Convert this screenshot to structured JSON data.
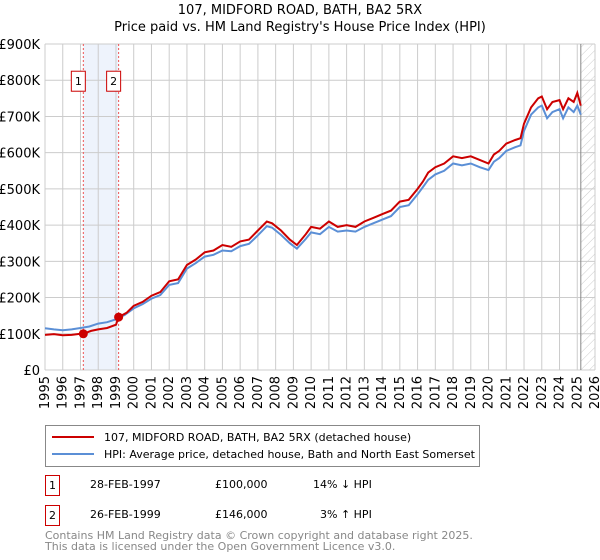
{
  "header": {
    "line1": "107, MIDFORD ROAD, BATH, BA2 5RX",
    "line2": "Price paid vs. HM Land Registry's House Price Index (HPI)"
  },
  "chart_data": {
    "type": "line",
    "title": "107, MIDFORD ROAD, BATH, BA2 5RX — Price paid vs. HM Land Registry's House Price Index (HPI)",
    "xlim": [
      1995,
      2026
    ],
    "ylim": [
      0,
      900000
    ],
    "x_ticks": [
      "1995",
      "1996",
      "1997",
      "1998",
      "1999",
      "2000",
      "2001",
      "2002",
      "2003",
      "2004",
      "2005",
      "2006",
      "2007",
      "2008",
      "2009",
      "2010",
      "2011",
      "2012",
      "2013",
      "2014",
      "2015",
      "2016",
      "2017",
      "2018",
      "2019",
      "2020",
      "2021",
      "2022",
      "2023",
      "2024",
      "2025",
      "2026"
    ],
    "y_ticks": [
      {
        "v": 0,
        "label": "£0"
      },
      {
        "v": 100000,
        "label": "£100K"
      },
      {
        "v": 200000,
        "label": "£200K"
      },
      {
        "v": 300000,
        "label": "£300K"
      },
      {
        "v": 400000,
        "label": "£400K"
      },
      {
        "v": 500000,
        "label": "£500K"
      },
      {
        "v": 600000,
        "label": "£600K"
      },
      {
        "v": 700000,
        "label": "£700K"
      },
      {
        "v": 800000,
        "label": "£800K"
      },
      {
        "v": 900000,
        "label": "£900K"
      }
    ],
    "grid": true,
    "series": [
      {
        "name": "107, MIDFORD ROAD, BATH, BA2 5RX (detached house)",
        "color": "#cc0000",
        "x": [
          1995,
          1995.5,
          1996,
          1996.5,
          1997,
          1997.16,
          1997.6,
          1998,
          1998.5,
          1999,
          1999.15,
          1999.6,
          2000,
          2000.5,
          2001,
          2001.5,
          2002,
          2002.5,
          2003,
          2003.5,
          2004,
          2004.5,
          2005,
          2005.5,
          2006,
          2006.5,
          2007,
          2007.5,
          2007.8,
          2008.3,
          2008.8,
          2009.2,
          2009.7,
          2010,
          2010.5,
          2011,
          2011.5,
          2012,
          2012.5,
          2013,
          2013.5,
          2014,
          2014.5,
          2015,
          2015.5,
          2016,
          2016.3,
          2016.6,
          2017,
          2017.5,
          2018,
          2018.5,
          2019,
          2019.5,
          2020,
          2020.3,
          2020.6,
          2021,
          2021.5,
          2021.8,
          2022,
          2022.4,
          2022.8,
          2023,
          2023.3,
          2023.6,
          2024,
          2024.2,
          2024.5,
          2024.8,
          2025,
          2025.2
        ],
        "y": [
          97000,
          99000,
          96000,
          97000,
          100000,
          100000,
          108000,
          112000,
          116000,
          125000,
          146000,
          158000,
          177000,
          188000,
          205000,
          215000,
          245000,
          250000,
          290000,
          305000,
          325000,
          330000,
          345000,
          340000,
          355000,
          360000,
          385000,
          410000,
          405000,
          385000,
          360000,
          345000,
          375000,
          395000,
          390000,
          410000,
          395000,
          400000,
          395000,
          410000,
          420000,
          430000,
          440000,
          465000,
          470000,
          500000,
          520000,
          545000,
          560000,
          570000,
          590000,
          585000,
          590000,
          580000,
          570000,
          595000,
          605000,
          625000,
          635000,
          640000,
          680000,
          725000,
          750000,
          755000,
          720000,
          740000,
          745000,
          720000,
          750000,
          740000,
          765000,
          730000
        ]
      },
      {
        "name": "HPI: Average price, detached house, Bath and North East Somerset",
        "color": "#5b8fd6",
        "x": [
          1995,
          1995.5,
          1996,
          1996.5,
          1997,
          1997.5,
          1998,
          1998.5,
          1999,
          1999.5,
          2000,
          2000.5,
          2001,
          2001.5,
          2002,
          2002.5,
          2003,
          2003.5,
          2004,
          2004.5,
          2005,
          2005.5,
          2006,
          2006.5,
          2007,
          2007.5,
          2007.8,
          2008.3,
          2008.8,
          2009.2,
          2009.7,
          2010,
          2010.5,
          2011,
          2011.5,
          2012,
          2012.5,
          2013,
          2013.5,
          2014,
          2014.5,
          2015,
          2015.5,
          2016,
          2016.3,
          2016.6,
          2017,
          2017.5,
          2018,
          2018.5,
          2019,
          2019.5,
          2020,
          2020.3,
          2020.6,
          2021,
          2021.5,
          2021.8,
          2022,
          2022.4,
          2022.8,
          2023,
          2023.3,
          2023.6,
          2024,
          2024.2,
          2024.5,
          2024.8,
          2025,
          2025.2
        ],
        "y": [
          115000,
          112000,
          110000,
          112000,
          116000,
          120000,
          128000,
          132000,
          140000,
          152000,
          170000,
          182000,
          197000,
          207000,
          235000,
          240000,
          280000,
          295000,
          313000,
          318000,
          330000,
          328000,
          342000,
          348000,
          372000,
          397000,
          393000,
          373000,
          350000,
          335000,
          362000,
          380000,
          375000,
          395000,
          382000,
          385000,
          382000,
          395000,
          405000,
          415000,
          425000,
          450000,
          455000,
          485000,
          505000,
          525000,
          540000,
          550000,
          570000,
          565000,
          570000,
          560000,
          552000,
          575000,
          585000,
          605000,
          615000,
          620000,
          660000,
          705000,
          725000,
          730000,
          695000,
          712000,
          720000,
          695000,
          725000,
          712000,
          730000,
          705000
        ]
      }
    ],
    "sales": [
      {
        "label": "1",
        "x": 1997.16,
        "y": 100000
      },
      {
        "label": "2",
        "x": 1999.15,
        "y": 146000
      }
    ],
    "forecast_start": 2025.2,
    "legend": {
      "placement": "below",
      "items": [
        "107, MIDFORD ROAD, BATH, BA2 5RX (detached house)",
        "HPI: Average price, detached house, Bath and North East Somerset"
      ]
    }
  },
  "transactions": [
    {
      "num": "1",
      "date": "28-FEB-1997",
      "price": "£100,000",
      "hpi": "14% ↓ HPI"
    },
    {
      "num": "2",
      "date": "26-FEB-1999",
      "price": "£146,000",
      "hpi": "3% ↑ HPI"
    }
  ],
  "footer": {
    "line1": "Contains HM Land Registry data © Crown copyright and database right 2025.",
    "line2": "This data is licensed under the Open Government Licence v3.0."
  }
}
